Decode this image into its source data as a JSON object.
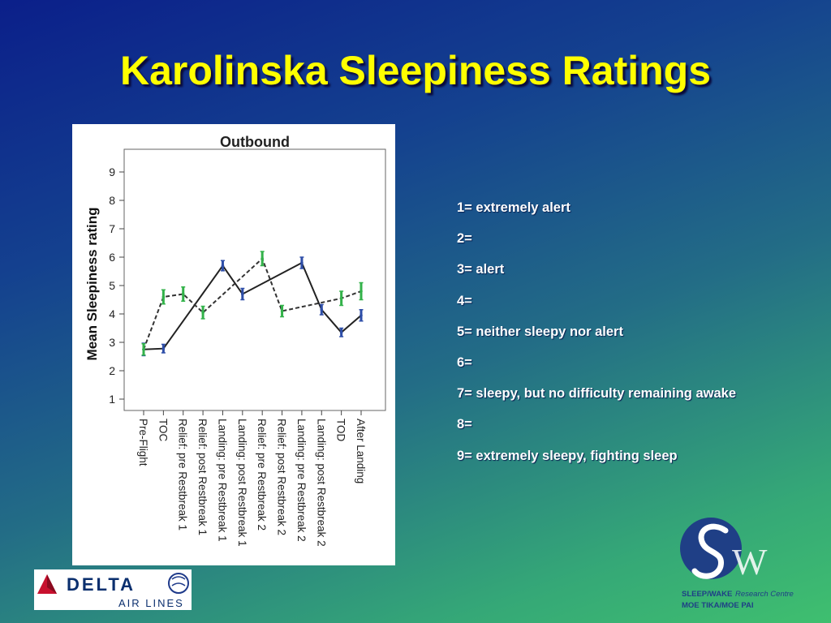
{
  "slide": {
    "title": "Karolinska Sleepiness Ratings"
  },
  "chart_data": {
    "type": "line",
    "title": "Outbound",
    "xlabel": "",
    "ylabel": "Mean Sleepiness rating",
    "ylim": [
      0.6,
      9.8
    ],
    "yticks": [
      1,
      2,
      3,
      4,
      5,
      6,
      7,
      8,
      9
    ],
    "categories": [
      "Pre-Flight",
      "TOC",
      "Relief: pre Restbreak 1",
      "Relief: post Restbreak 1",
      "Landing: pre Restbreak 1",
      "Landing: post Restbreak 1",
      "Relief: pre Restbreak 2",
      "Relief: post Restbreak 2",
      "Landing: pre Restbreak 2",
      "Landing: post Restbreak 2",
      "TOD",
      "After Landing"
    ],
    "series": [
      {
        "color": "#2e4ea8",
        "dash": "solid",
        "values": [
          2.75,
          2.78,
          null,
          null,
          5.7,
          4.7,
          null,
          null,
          5.8,
          4.15,
          3.35,
          3.95
        ],
        "err": [
          0.22,
          0.15,
          null,
          null,
          0.18,
          0.2,
          null,
          null,
          0.2,
          0.18,
          0.15,
          0.2
        ]
      },
      {
        "color": "#33b24a",
        "dash": "dashed",
        "values": [
          2.75,
          4.6,
          4.7,
          4.05,
          null,
          null,
          5.95,
          4.1,
          null,
          null,
          4.55,
          4.8
        ],
        "err": [
          0.2,
          0.25,
          0.25,
          0.22,
          null,
          null,
          0.25,
          0.2,
          null,
          null,
          0.25,
          0.3
        ]
      }
    ],
    "grid": false,
    "legend": "none"
  },
  "scale": [
    "1= extremely alert",
    "2=",
    "3= alert",
    "4=",
    "5= neither sleepy nor alert",
    "6=",
    "7= sleepy, but no difficulty remaining awake",
    "8=",
    "9= extremely sleepy, fighting sleep"
  ],
  "logos": {
    "delta_name": "DELTA",
    "delta_sub": "AIR LINES",
    "delta_color": "#0b2f6e",
    "delta_red": "#c8102e",
    "sw_line1": "SLEEP/WAKE",
    "sw_line1b": "Research Centre",
    "sw_line2": "MOE TIKA/MOE PAI",
    "sw_color": "#1f3f86"
  }
}
